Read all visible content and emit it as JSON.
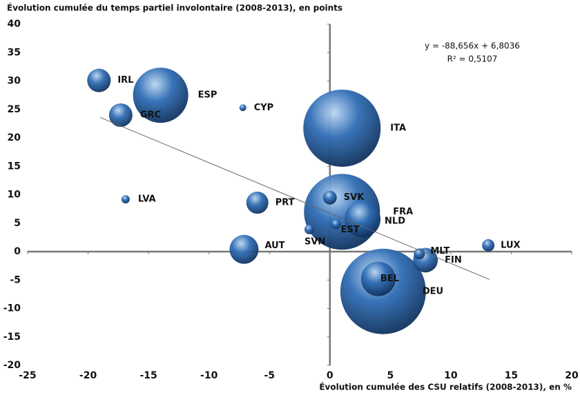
{
  "chart_data": {
    "type": "bubble",
    "title": "Évolution cumulée du temps partiel involontaire (2008-2013), en points",
    "x_label": "Évolution cumulée des CSU relatifs (2008-2013), en %",
    "annotations": [
      "y = -88,656x + 6,8036",
      "R² = 0,5107"
    ],
    "categories": [
      "IRL",
      "ESP",
      "GRC",
      "CYP",
      "ITA",
      "LVA",
      "PRT",
      "SVK",
      "FRA",
      "NLD",
      "EST",
      "SVN",
      "AUT",
      "MLT",
      "FIN",
      "LUX",
      "BEL",
      "DEU"
    ],
    "x": [
      -19.1,
      -14.0,
      -17.3,
      -7.2,
      1.0,
      -16.9,
      -6.0,
      0.0,
      1.0,
      2.7,
      0.5,
      -1.7,
      -7.1,
      7.4,
      7.9,
      13.1,
      4.0,
      4.4
    ],
    "values": [
      30.1,
      27.5,
      24.0,
      25.3,
      21.7,
      9.2,
      8.6,
      9.5,
      7.0,
      5.7,
      4.8,
      3.9,
      0.4,
      -0.4,
      -1.5,
      1.1,
      -4.8,
      -7.0
    ],
    "sizes": [
      2.9,
      16,
      2.9,
      0.25,
      31.4,
      0.36,
      2.56,
      1,
      30.3,
      6.8,
      0.49,
      0.49,
      4.4,
      0.64,
      3.2,
      0.81,
      6.25,
      38.4
    ],
    "color": "#2f6db5",
    "trendline": {
      "x": [
        -19,
        13.2
      ],
      "y": [
        23.6,
        -4.9
      ]
    },
    "xlim": [
      -25,
      20
    ],
    "xticks": [
      -25,
      -20,
      -15,
      -10,
      -5,
      0,
      5,
      10,
      15,
      20
    ],
    "ylim": [
      -20,
      40
    ],
    "yticks": [
      -20,
      -15,
      -10,
      -5,
      0,
      5,
      10,
      15,
      20,
      25,
      30,
      35,
      40
    ],
    "grid": false
  }
}
